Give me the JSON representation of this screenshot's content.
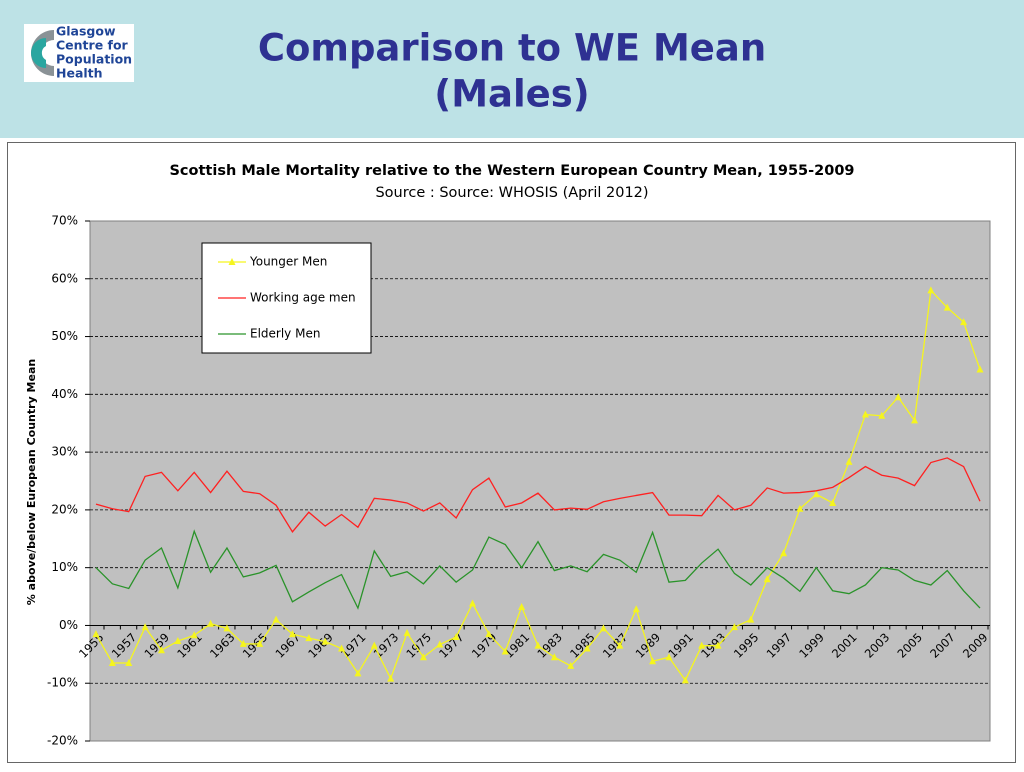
{
  "header": {
    "logo": [
      "Glasgow",
      "Centre for",
      "Population",
      "Health"
    ],
    "title": [
      "Comparison to WE Mean",
      "(Males)"
    ]
  },
  "chart_data": {
    "type": "line",
    "title": "Scottish Male Mortality relative to the Western European Country Mean, 1955-2009",
    "subtitle": "Source : Source: WHOSIS (April 2012)",
    "y_label": "% above/below European Country Mean",
    "categories": [
      "1955",
      null,
      "1957",
      null,
      "1959",
      null,
      "1961",
      null,
      "1963",
      null,
      "1965",
      null,
      "1967",
      null,
      "1969",
      null,
      "1971",
      null,
      "1973",
      null,
      "1975",
      null,
      "1977",
      null,
      "1979",
      null,
      "1981",
      null,
      "1983",
      null,
      "1985",
      null,
      "1987",
      null,
      "1989",
      null,
      "1991",
      null,
      "1993",
      null,
      "1995",
      null,
      "1997",
      null,
      "1999",
      null,
      "2001",
      null,
      "2003",
      null,
      "2005",
      null,
      "2007",
      null,
      "2009"
    ],
    "series": [
      {
        "name": "Younger Men",
        "color": "#f5f51e",
        "marker": "triangle",
        "values": [
          -1.5,
          -6.5,
          -6.5,
          -0.3,
          -4.3,
          -2.7,
          -1.7,
          0.3,
          -0.5,
          -3.2,
          -3.2,
          1.0,
          -1.5,
          -2.2,
          -2.8,
          -4.0,
          -8.3,
          -3.5,
          -9.2,
          -1.3,
          -5.5,
          -3.3,
          -2.0,
          3.8,
          -1.5,
          -4.5,
          3.2,
          -3.5,
          -5.5,
          -7.0,
          -4.0,
          -0.5,
          -3.5,
          2.8,
          -6.2,
          -5.5,
          -9.5,
          -3.5,
          -3.5,
          -0.3,
          1.0,
          8.0,
          12.5,
          20.2,
          22.7,
          21.2,
          28.3,
          36.5,
          36.3,
          39.5,
          35.5,
          58.0,
          55.0,
          52.5,
          44.3
        ]
      },
      {
        "name": "Working age men",
        "color": "#ff2020",
        "values": [
          21.0,
          20.2,
          19.7,
          25.8,
          26.5,
          23.3,
          26.5,
          23.0,
          26.7,
          23.2,
          22.8,
          20.8,
          16.2,
          19.6,
          17.2,
          19.2,
          17.0,
          22.0,
          21.7,
          21.2,
          19.8,
          21.2,
          18.6,
          23.5,
          25.5,
          20.5,
          21.2,
          22.9,
          20.0,
          20.3,
          20.1,
          21.4,
          22.0,
          22.5,
          23.0,
          19.1,
          19.1,
          19.0,
          22.5,
          20.0,
          20.8,
          23.8,
          22.9,
          23.0,
          23.3,
          23.9,
          25.6,
          27.5,
          26.0,
          25.5,
          24.2,
          28.2,
          29.0,
          27.5,
          21.5
        ]
      },
      {
        "name": "Elderly Men",
        "color": "#2a932a",
        "values": [
          10.0,
          7.2,
          6.4,
          11.3,
          13.4,
          6.5,
          16.3,
          9.2,
          13.4,
          8.4,
          9.1,
          10.4,
          4.1,
          5.8,
          7.4,
          8.8,
          3.0,
          12.9,
          8.5,
          9.3,
          7.2,
          10.3,
          7.5,
          9.6,
          15.3,
          14.0,
          10.0,
          14.5,
          9.5,
          10.3,
          9.3,
          12.3,
          11.3,
          9.2,
          16.1,
          7.5,
          7.8,
          10.8,
          13.2,
          9.0,
          7.0,
          10.0,
          8.2,
          5.9,
          10.0,
          6.0,
          5.5,
          7.0,
          10.0,
          9.6,
          7.8,
          7.0,
          9.5,
          6.0,
          3.0
        ]
      }
    ],
    "ylim": [
      -20,
      70
    ],
    "yticks": [
      {
        "value": -20,
        "label": "-20%"
      },
      {
        "value": -10,
        "label": "-10%"
      },
      {
        "value": 0,
        "label": "0%"
      },
      {
        "value": 10,
        "label": "10%"
      },
      {
        "value": 20,
        "label": "20%"
      },
      {
        "value": 30,
        "label": "30%"
      },
      {
        "value": 40,
        "label": "40%"
      },
      {
        "value": 50,
        "label": "50%"
      },
      {
        "value": 60,
        "label": "60%"
      },
      {
        "value": 70,
        "label": "70%"
      }
    ],
    "grid": true,
    "legend": "upper-left"
  }
}
